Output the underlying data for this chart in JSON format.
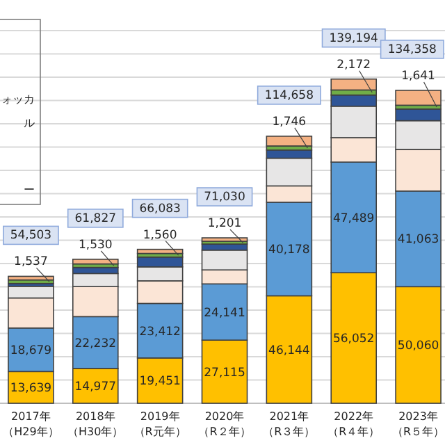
{
  "chart_data": {
    "type": "bar",
    "stacked": true,
    "categories": [
      "2017年（H29年）",
      "2018年（H30年）",
      "2019年（R元年）",
      "2020年（R２年）",
      "2021年（R３年）",
      "2022年（R４年）",
      "2023年（R５年）"
    ],
    "series": [
      {
        "color": "#ffc000",
        "values": [
          13639,
          14977,
          19451,
          27115,
          46144,
          56052,
          50060
        ],
        "value_labels": [
          "13,639",
          "14,977",
          "19,451",
          "27,115",
          "46,144",
          "56,052",
          "50,060"
        ]
      },
      {
        "color": "#5b9bd5",
        "values": [
          18679,
          22232,
          23412,
          24141,
          40178,
          47489,
          41063
        ],
        "value_labels": [
          "18,679",
          "22,232",
          "23,412",
          "24,141",
          "40,178",
          "47,489",
          "41,063"
        ]
      },
      {
        "color": "#fbe5d6",
        "values": [
          12900,
          12900,
          9700,
          6000,
          7000,
          10500,
          17900
        ]
      },
      {
        "color": "#e7e6e6",
        "values": [
          5000,
          5600,
          6000,
          8500,
          11900,
          13500,
          12300
        ]
      },
      {
        "color": "#2f5597",
        "values": [
          1200,
          2600,
          4200,
          2600,
          3500,
          4800,
          4994
        ]
      },
      {
        "color": "#70ad47",
        "values": [
          1537,
          1530,
          1560,
          1201,
          1746,
          2172,
          1641
        ],
        "value_labels": [
          "1,537",
          "1,530",
          "1,560",
          "1,201",
          "1,746",
          "2,172",
          "1,641"
        ]
      },
      {
        "color": "#f4b183",
        "values": [
          1548,
          1988,
          1760,
          1473,
          4190,
          4681,
          6400
        ]
      }
    ],
    "totals": [
      "54,503",
      "61,827",
      "66,083",
      "71,030",
      "114,658",
      "139,194",
      "134,358"
    ],
    "ylim": [
      0,
      160000
    ],
    "yticks": [
      {
        "value": 0,
        "label": null
      },
      {
        "value": 10000,
        "label": null
      },
      {
        "value": 20000,
        "label": null
      },
      {
        "value": 30000,
        "label": null
      },
      {
        "value": 40000,
        "label": null
      },
      {
        "value": 50000,
        "label": null
      },
      {
        "value": 60000,
        "label": null
      },
      {
        "value": 70000,
        "label": null
      },
      {
        "value": 80000,
        "label": null
      },
      {
        "value": 90000,
        "label": null
      },
      {
        "value": 100000,
        "label": null
      },
      {
        "value": 110000,
        "label": null
      },
      {
        "value": 120000,
        "label": null
      },
      {
        "value": 130000,
        "label": null
      },
      {
        "value": 140000,
        "label": null
      },
      {
        "value": 150000,
        "label": null
      },
      {
        "value": 160000,
        "label": null
      }
    ],
    "tick_labels": "x",
    "grid": "y",
    "annotations": [
      "ォッカ",
      "ル",
      "ー"
    ]
  }
}
